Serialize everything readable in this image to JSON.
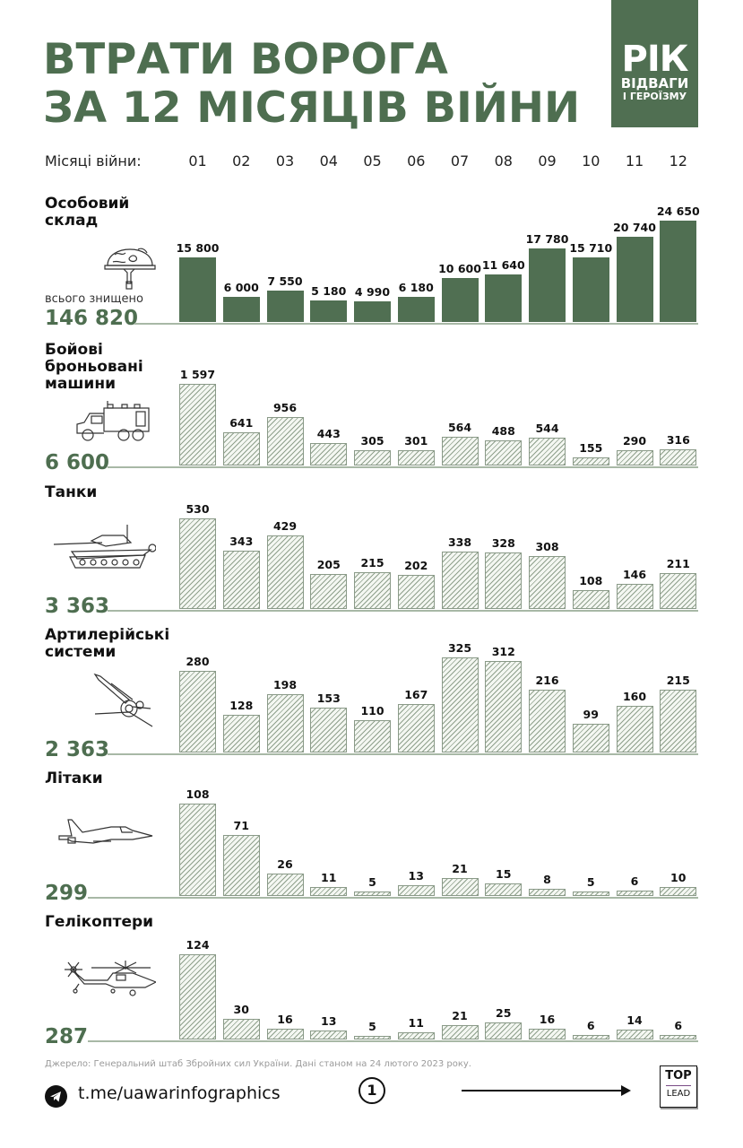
{
  "header": {
    "title_line1": "ВТРАТИ ВОРОГА",
    "title_line2": "ЗА 12 МІСЯЦІВ ВІЙНИ",
    "logo": {
      "big": "РІК",
      "line1": "ВІДВАГИ",
      "line2": "І ГЕРОЇЗМУ"
    },
    "months_label": "Місяці війни:",
    "months": [
      "01",
      "02",
      "03",
      "04",
      "05",
      "06",
      "07",
      "08",
      "09",
      "10",
      "11",
      "12"
    ]
  },
  "colors": {
    "accent": "#506f52",
    "hatch": "#8fa08c",
    "text": "#111111"
  },
  "chart_data": [
    {
      "type": "bar",
      "title": "Особовий склад",
      "subtitle": "всього знищено",
      "total": "146 820",
      "icon": "helmet-icon",
      "style": "solid",
      "categories": [
        "01",
        "02",
        "03",
        "04",
        "05",
        "06",
        "07",
        "08",
        "09",
        "10",
        "11",
        "12"
      ],
      "values": [
        15800,
        6000,
        7550,
        5180,
        4990,
        6180,
        10600,
        11640,
        17780,
        15710,
        20740,
        24650
      ],
      "labels": [
        "15 800",
        "6 000",
        "7 550",
        "5 180",
        "4 990",
        "6 180",
        "10 600",
        "11 640",
        "17 780",
        "15 710",
        "20 740",
        "24 650"
      ]
    },
    {
      "type": "bar",
      "title": "Бойові броньовані машини",
      "title_lines": [
        "Бойові",
        "броньовані",
        "машини"
      ],
      "total": "6 600",
      "icon": "armored-truck-icon",
      "style": "hatch",
      "categories": [
        "01",
        "02",
        "03",
        "04",
        "05",
        "06",
        "07",
        "08",
        "09",
        "10",
        "11",
        "12"
      ],
      "values": [
        1597,
        641,
        956,
        443,
        305,
        301,
        564,
        488,
        544,
        155,
        290,
        316
      ],
      "labels": [
        "1 597",
        "641",
        "956",
        "443",
        "305",
        "301",
        "564",
        "488",
        "544",
        "155",
        "290",
        "316"
      ]
    },
    {
      "type": "bar",
      "title": "Танки",
      "title_lines": [
        "Танки"
      ],
      "total": "3 363",
      "icon": "tank-icon",
      "style": "hatch",
      "categories": [
        "01",
        "02",
        "03",
        "04",
        "05",
        "06",
        "07",
        "08",
        "09",
        "10",
        "11",
        "12"
      ],
      "values": [
        530,
        343,
        429,
        205,
        215,
        202,
        338,
        328,
        308,
        108,
        146,
        211
      ],
      "labels": [
        "530",
        "343",
        "429",
        "205",
        "215",
        "202",
        "338",
        "328",
        "308",
        "108",
        "146",
        "211"
      ]
    },
    {
      "type": "bar",
      "title": "Артилерійські системи",
      "title_lines": [
        "Артилерійські",
        "системи"
      ],
      "total": "2 363",
      "icon": "artillery-icon",
      "style": "hatch",
      "categories": [
        "01",
        "02",
        "03",
        "04",
        "05",
        "06",
        "07",
        "08",
        "09",
        "10",
        "11",
        "12"
      ],
      "values": [
        280,
        128,
        198,
        153,
        110,
        167,
        325,
        312,
        216,
        99,
        160,
        215
      ],
      "labels": [
        "280",
        "128",
        "198",
        "153",
        "110",
        "167",
        "325",
        "312",
        "216",
        "99",
        "160",
        "215"
      ]
    },
    {
      "type": "bar",
      "title": "Літаки",
      "title_lines": [
        "Літаки"
      ],
      "total": "299",
      "icon": "jet-icon",
      "style": "hatch",
      "categories": [
        "01",
        "02",
        "03",
        "04",
        "05",
        "06",
        "07",
        "08",
        "09",
        "10",
        "11",
        "12"
      ],
      "values": [
        108,
        71,
        26,
        11,
        5,
        13,
        21,
        15,
        8,
        5,
        6,
        10
      ],
      "labels": [
        "108",
        "71",
        "26",
        "11",
        "5",
        "13",
        "21",
        "15",
        "8",
        "5",
        "6",
        "10"
      ]
    },
    {
      "type": "bar",
      "title": "Гелікоптери",
      "title_lines": [
        "Гелікоптери"
      ],
      "total": "287",
      "icon": "helicopter-icon",
      "style": "hatch",
      "categories": [
        "01",
        "02",
        "03",
        "04",
        "05",
        "06",
        "07",
        "08",
        "09",
        "10",
        "11",
        "12"
      ],
      "values": [
        124,
        30,
        16,
        13,
        5,
        11,
        21,
        25,
        16,
        6,
        14,
        6
      ],
      "labels": [
        "124",
        "30",
        "16",
        "13",
        "5",
        "11",
        "21",
        "25",
        "16",
        "6",
        "14",
        "6"
      ]
    }
  ],
  "footer": {
    "source": "Джерело: Генеральний штаб Збройних сил України. Дані станом на 24 лютого 2023 року.",
    "telegram_link": "t.me/uawarinfographics",
    "page_number": "1",
    "brand_top": "TOP",
    "brand_bottom": "LEAD"
  }
}
